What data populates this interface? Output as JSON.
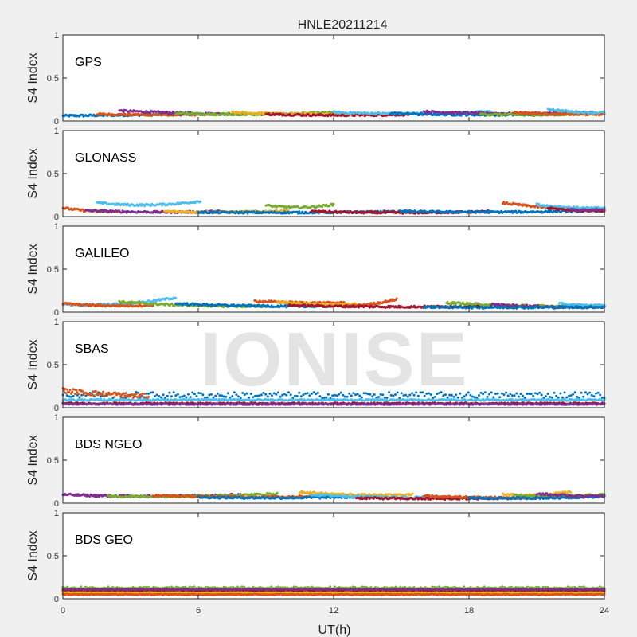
{
  "chart_data": {
    "type": "scatter",
    "title": "HNLE20211214",
    "xlabel": "UT(h)",
    "ylabel": "S4 Index",
    "xlim": [
      0,
      24
    ],
    "ylim": [
      0,
      1
    ],
    "xticks": [
      0,
      6,
      12,
      18,
      24
    ],
    "yticks": [
      0,
      0.5,
      1
    ],
    "ytick_labels": [
      "0",
      "0.5",
      "1"
    ],
    "watermark": "IONISE",
    "colors": [
      "#0072BD",
      "#D95319",
      "#EDB120",
      "#7E2F8E",
      "#77AC30",
      "#4DBEEE",
      "#A2142F"
    ],
    "panels": [
      {
        "label": "GPS",
        "tracks": [
          {
            "color": 0,
            "x0": 0.0,
            "x1": 6.5,
            "a": 0.06,
            "b": 0.07,
            "c": 0.08
          },
          {
            "color": 1,
            "x0": 1.5,
            "x1": 8.0,
            "a": 0.08,
            "b": 0.06,
            "c": 0.09
          },
          {
            "color": 3,
            "x0": 2.5,
            "x1": 10.5,
            "a": 0.12,
            "b": 0.07,
            "c": 0.08
          },
          {
            "color": 4,
            "x0": 5.0,
            "x1": 12.0,
            "a": 0.09,
            "b": 0.06,
            "c": 0.1
          },
          {
            "color": 2,
            "x0": 7.5,
            "x1": 14.0,
            "a": 0.1,
            "b": 0.07,
            "c": 0.08
          },
          {
            "color": 6,
            "x0": 9.0,
            "x1": 17.0,
            "a": 0.08,
            "b": 0.05,
            "c": 0.09
          },
          {
            "color": 5,
            "x0": 12.0,
            "x1": 19.0,
            "a": 0.1,
            "b": 0.07,
            "c": 0.11
          },
          {
            "color": 0,
            "x0": 14.5,
            "x1": 22.0,
            "a": 0.09,
            "b": 0.06,
            "c": 0.08
          },
          {
            "color": 3,
            "x0": 16.0,
            "x1": 23.5,
            "a": 0.11,
            "b": 0.07,
            "c": 0.1
          },
          {
            "color": 4,
            "x0": 18.5,
            "x1": 24.0,
            "a": 0.08,
            "b": 0.06,
            "c": 0.09
          },
          {
            "color": 1,
            "x0": 20.0,
            "x1": 24.0,
            "a": 0.1,
            "b": 0.07,
            "c": 0.08
          },
          {
            "color": 5,
            "x0": 21.5,
            "x1": 24.0,
            "a": 0.14,
            "b": 0.09,
            "c": 0.1
          }
        ]
      },
      {
        "label": "GLONASS",
        "tracks": [
          {
            "color": 5,
            "x0": 1.5,
            "x1": 6.1,
            "a": 0.16,
            "b": 0.1,
            "c": 0.18
          },
          {
            "color": 1,
            "x0": 0.0,
            "x1": 2.5,
            "a": 0.1,
            "b": 0.05,
            "c": 0.06
          },
          {
            "color": 3,
            "x0": 1.0,
            "x1": 7.0,
            "a": 0.07,
            "b": 0.04,
            "c": 0.06
          },
          {
            "color": 2,
            "x0": 4.5,
            "x1": 10.0,
            "a": 0.06,
            "b": 0.04,
            "c": 0.07
          },
          {
            "color": 4,
            "x0": 9.0,
            "x1": 12.0,
            "a": 0.13,
            "b": 0.08,
            "c": 0.14
          },
          {
            "color": 0,
            "x0": 6.0,
            "x1": 15.5,
            "a": 0.05,
            "b": 0.04,
            "c": 0.06
          },
          {
            "color": 6,
            "x0": 11.0,
            "x1": 19.0,
            "a": 0.06,
            "b": 0.03,
            "c": 0.06
          },
          {
            "color": 0,
            "x0": 15.0,
            "x1": 24.0,
            "a": 0.06,
            "b": 0.04,
            "c": 0.07
          },
          {
            "color": 1,
            "x0": 19.5,
            "x1": 24.0,
            "a": 0.16,
            "b": 0.08,
            "c": 0.07
          },
          {
            "color": 5,
            "x0": 21.0,
            "x1": 24.0,
            "a": 0.14,
            "b": 0.09,
            "c": 0.1
          },
          {
            "color": 6,
            "x0": 21.5,
            "x1": 24.0,
            "a": 0.1,
            "b": 0.06,
            "c": 0.07
          },
          {
            "color": 3,
            "x0": 22.5,
            "x1": 24.0,
            "a": 0.08,
            "b": 0.06,
            "c": 0.09
          }
        ]
      },
      {
        "label": "GALILEO",
        "tracks": [
          {
            "color": 5,
            "x0": 0.0,
            "x1": 5.0,
            "a": 0.09,
            "b": 0.06,
            "c": 0.17
          },
          {
            "color": 1,
            "x0": 0.0,
            "x1": 4.0,
            "a": 0.1,
            "b": 0.06,
            "c": 0.08
          },
          {
            "color": 4,
            "x0": 2.5,
            "x1": 9.0,
            "a": 0.12,
            "b": 0.06,
            "c": 0.07
          },
          {
            "color": 0,
            "x0": 5.0,
            "x1": 12.0,
            "a": 0.1,
            "b": 0.06,
            "c": 0.07
          },
          {
            "color": 1,
            "x0": 8.5,
            "x1": 12.5,
            "a": 0.13,
            "b": 0.1,
            "c": 0.11
          },
          {
            "color": 2,
            "x0": 9.5,
            "x1": 13.0,
            "a": 0.12,
            "b": 0.08,
            "c": 0.09
          },
          {
            "color": 1,
            "x0": 12.5,
            "x1": 14.8,
            "a": 0.07,
            "b": 0.08,
            "c": 0.15
          },
          {
            "color": 6,
            "x0": 10.0,
            "x1": 19.0,
            "a": 0.08,
            "b": 0.05,
            "c": 0.07
          },
          {
            "color": 4,
            "x0": 17.0,
            "x1": 24.0,
            "a": 0.11,
            "b": 0.06,
            "c": 0.07
          },
          {
            "color": 3,
            "x0": 19.0,
            "x1": 24.0,
            "a": 0.09,
            "b": 0.05,
            "c": 0.06
          },
          {
            "color": 5,
            "x0": 22.0,
            "x1": 24.0,
            "a": 0.1,
            "b": 0.07,
            "c": 0.08
          },
          {
            "color": 0,
            "x0": 16.0,
            "x1": 24.0,
            "a": 0.06,
            "b": 0.05,
            "c": 0.06
          }
        ]
      },
      {
        "label": "SBAS",
        "tracks": [
          {
            "color": 0,
            "x0": 0.0,
            "x1": 24.0,
            "a": 0.15,
            "b": 0.14,
            "c": 0.15,
            "noise": 0.035,
            "n": 260
          },
          {
            "color": 1,
            "x0": 0.0,
            "x1": 3.8,
            "a": 0.2,
            "b": 0.15,
            "c": 0.13,
            "noise": 0.03
          },
          {
            "color": 5,
            "x0": 0.0,
            "x1": 24.0,
            "a": 0.09,
            "b": 0.09,
            "c": 0.09,
            "noise": 0.01
          },
          {
            "color": 6,
            "x0": 0.0,
            "x1": 24.0,
            "a": 0.05,
            "b": 0.05,
            "c": 0.05,
            "noise": 0.008
          },
          {
            "color": 3,
            "x0": 0.0,
            "x1": 24.0,
            "a": 0.04,
            "b": 0.04,
            "c": 0.04,
            "noise": 0.006
          }
        ]
      },
      {
        "label": "BDS NGEO",
        "tracks": [
          {
            "color": 3,
            "x0": 0.0,
            "x1": 8.0,
            "a": 0.1,
            "b": 0.06,
            "c": 0.1
          },
          {
            "color": 4,
            "x0": 2.0,
            "x1": 9.5,
            "a": 0.08,
            "b": 0.07,
            "c": 0.11
          },
          {
            "color": 1,
            "x0": 4.0,
            "x1": 11.0,
            "a": 0.09,
            "b": 0.06,
            "c": 0.08
          },
          {
            "color": 0,
            "x0": 6.0,
            "x1": 14.0,
            "a": 0.07,
            "b": 0.05,
            "c": 0.08
          },
          {
            "color": 2,
            "x0": 10.5,
            "x1": 15.5,
            "a": 0.13,
            "b": 0.08,
            "c": 0.1
          },
          {
            "color": 5,
            "x0": 11.0,
            "x1": 17.0,
            "a": 0.1,
            "b": 0.06,
            "c": 0.07
          },
          {
            "color": 6,
            "x0": 13.0,
            "x1": 22.0,
            "a": 0.06,
            "b": 0.04,
            "c": 0.07
          },
          {
            "color": 1,
            "x0": 16.0,
            "x1": 23.0,
            "a": 0.08,
            "b": 0.05,
            "c": 0.07
          },
          {
            "color": 2,
            "x0": 19.5,
            "x1": 22.5,
            "a": 0.1,
            "b": 0.08,
            "c": 0.13
          },
          {
            "color": 4,
            "x0": 20.0,
            "x1": 24.0,
            "a": 0.09,
            "b": 0.07,
            "c": 0.1
          },
          {
            "color": 0,
            "x0": 18.0,
            "x1": 24.0,
            "a": 0.06,
            "b": 0.05,
            "c": 0.08
          },
          {
            "color": 3,
            "x0": 21.0,
            "x1": 24.0,
            "a": 0.11,
            "b": 0.08,
            "c": 0.08
          }
        ]
      },
      {
        "label": "BDS GEO",
        "tracks": [
          {
            "color": 4,
            "x0": 0.0,
            "x1": 24.0,
            "a": 0.13,
            "b": 0.13,
            "c": 0.13,
            "noise": 0.01,
            "n": 240
          },
          {
            "color": 0,
            "x0": 0.0,
            "x1": 24.0,
            "a": 0.1,
            "b": 0.1,
            "c": 0.1,
            "noise": 0.006
          },
          {
            "color": 6,
            "x0": 0.0,
            "x1": 24.0,
            "a": 0.09,
            "b": 0.09,
            "c": 0.09,
            "noise": 0.006
          },
          {
            "color": 2,
            "x0": 0.0,
            "x1": 24.0,
            "a": 0.07,
            "b": 0.07,
            "c": 0.07,
            "noise": 0.005
          },
          {
            "color": 1,
            "x0": 0.0,
            "x1": 24.0,
            "a": 0.05,
            "b": 0.05,
            "c": 0.05,
            "noise": 0.005
          },
          {
            "color": 3,
            "x0": 0.0,
            "x1": 24.0,
            "a": 0.11,
            "b": 0.11,
            "c": 0.11,
            "noise": 0.005
          }
        ]
      }
    ]
  }
}
